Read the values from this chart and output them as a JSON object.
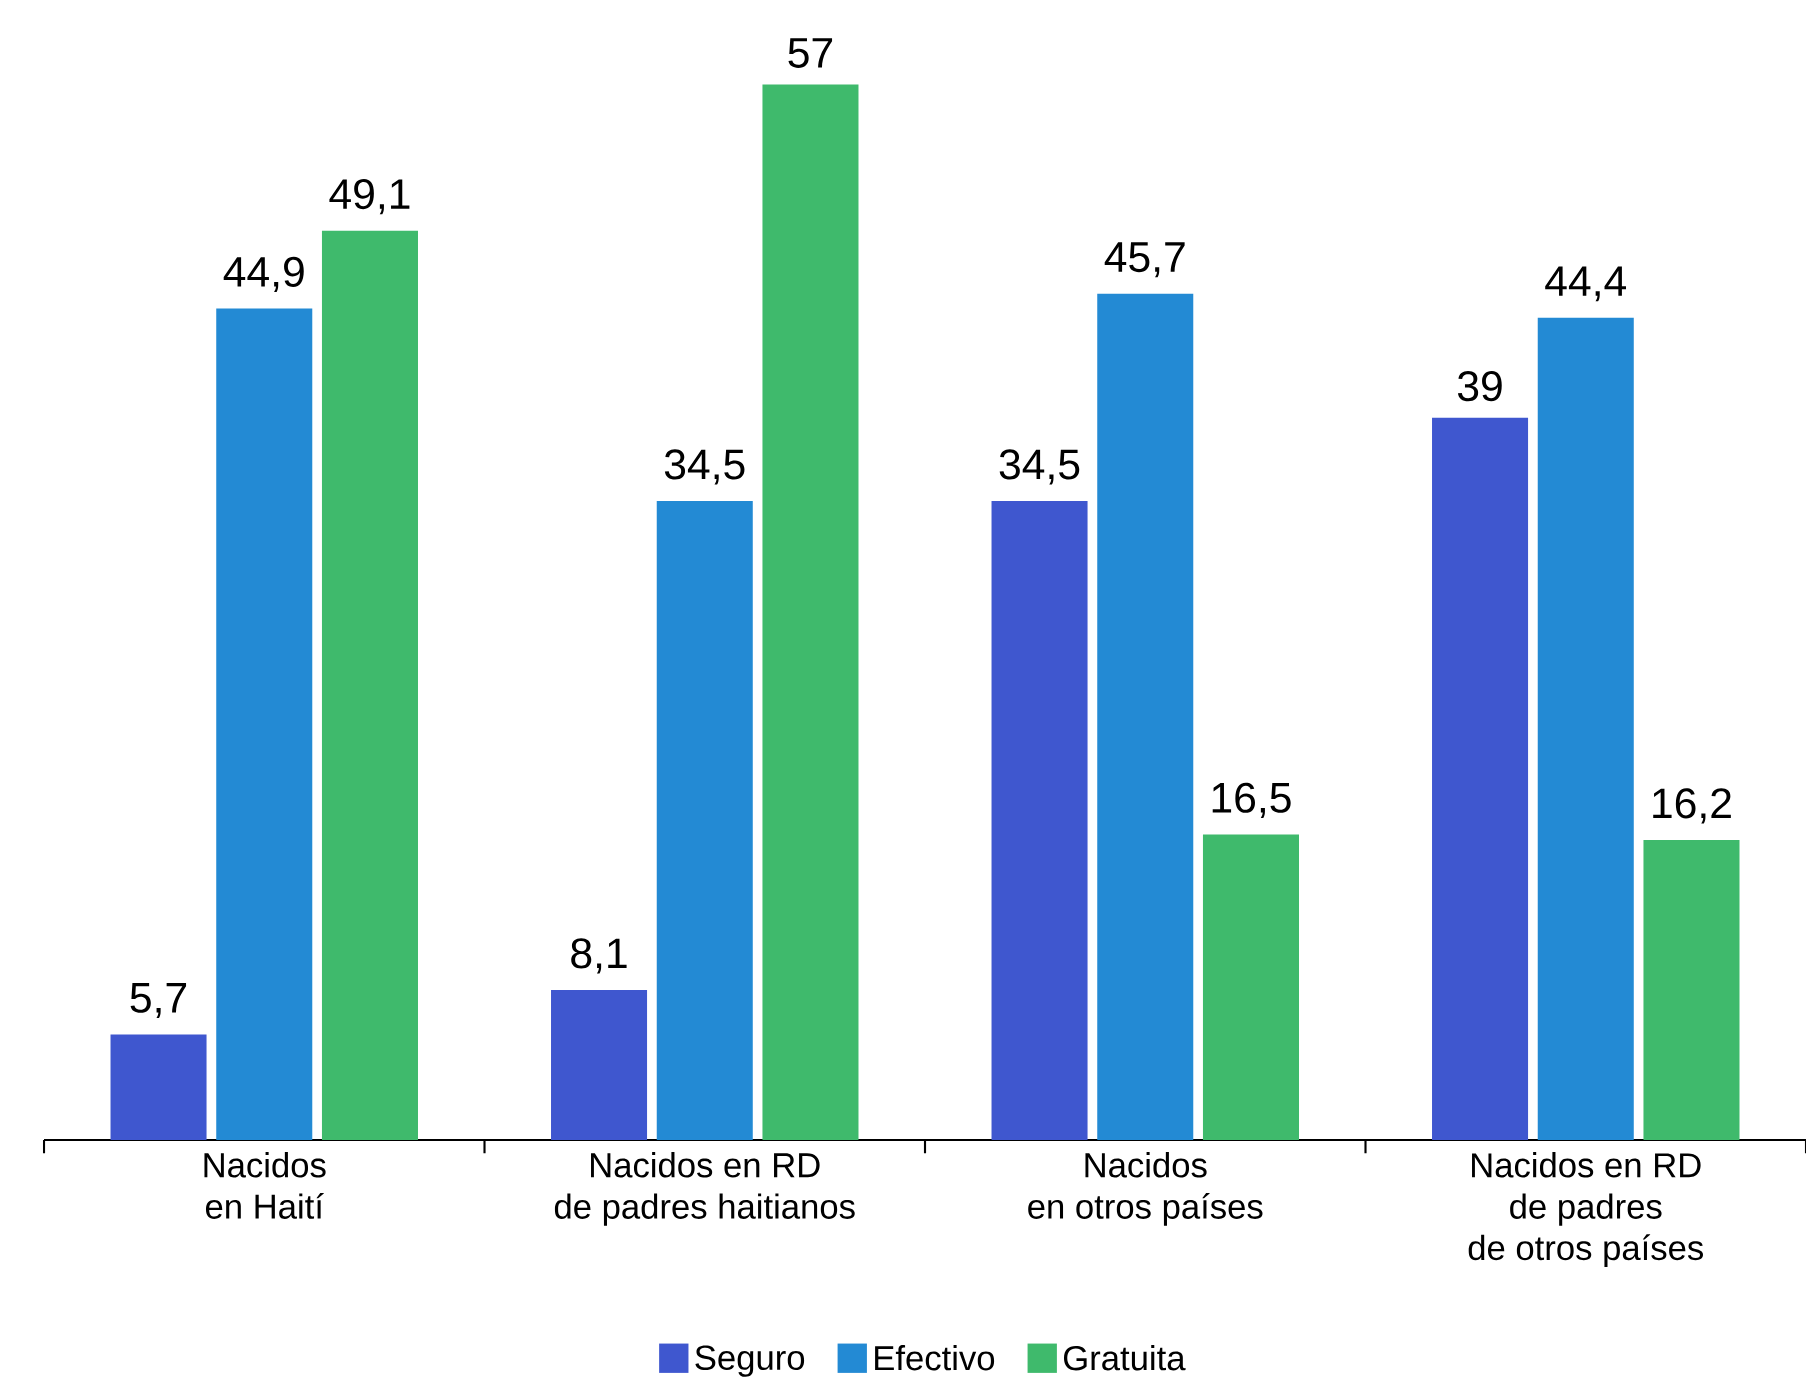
{
  "chart_data": {
    "type": "bar",
    "categories": [
      "Nacidos\nen Haití",
      "Nacidos en RD\nde padres haitianos",
      "Nacidos\nen otros países",
      "Nacidos en RD\nde padres\nde otros países"
    ],
    "series": [
      {
        "name": "Seguro",
        "color": "#3f57cf",
        "values": [
          5.7,
          8.1,
          34.5,
          39
        ],
        "value_labels": [
          "5,7",
          "8,1",
          "34,5",
          "39"
        ]
      },
      {
        "name": "Efectivo",
        "color": "#238ad4",
        "values": [
          44.9,
          34.5,
          45.7,
          44.4
        ],
        "value_labels": [
          "44,9",
          "34,5",
          "45,7",
          "44,4"
        ]
      },
      {
        "name": "Gratuita",
        "color": "#3fba6c",
        "values": [
          49.1,
          57,
          16.5,
          16.2
        ],
        "value_labels": [
          "49,1",
          "57",
          "16,5",
          "16,2"
        ]
      }
    ],
    "legend": "bottom"
  }
}
